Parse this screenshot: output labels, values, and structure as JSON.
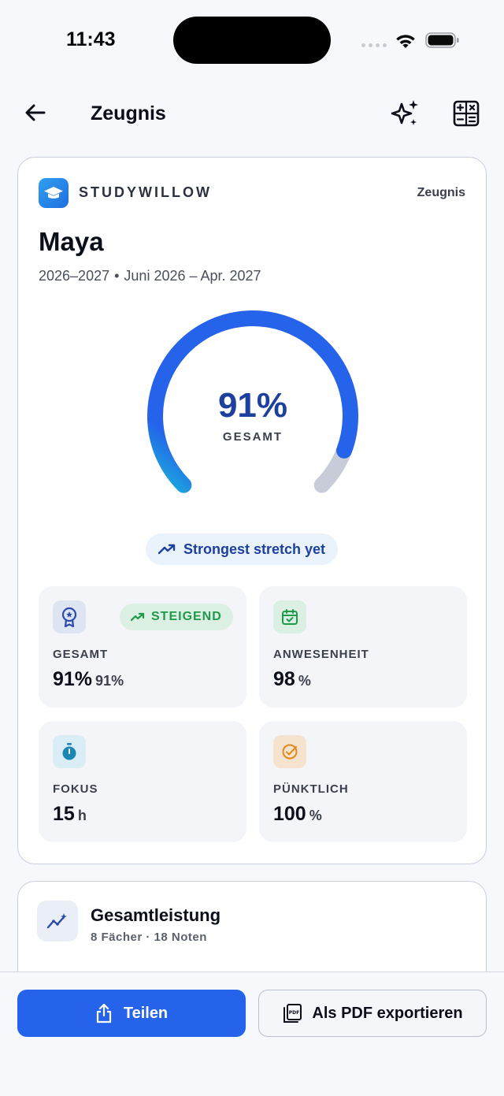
{
  "status_bar": {
    "time": "11:43"
  },
  "nav": {
    "title": "Zeugnis"
  },
  "report": {
    "brand": "STUDYWILLOW",
    "card_type": "Zeugnis",
    "student_name": "Maya",
    "school_year": "2026–2027",
    "date_range": "Juni 2026 – Apr. 2027",
    "overall_percent": "91%",
    "overall_fraction": 0.91,
    "overall_label": "GESAMT",
    "stretch_label": "Strongest stretch yet",
    "tiles": [
      {
        "label": "GESAMT",
        "value": "91%",
        "unit": "91%",
        "badge": "STEIGEND",
        "icon": "award-icon"
      },
      {
        "label": "ANWESENHEIT",
        "value": "98",
        "unit": "%",
        "icon": "calendar-check-icon"
      },
      {
        "label": "FOKUS",
        "value": "15",
        "unit": "h",
        "icon": "stopwatch-icon"
      },
      {
        "label": "PÜNKTLICH",
        "value": "100",
        "unit": "%",
        "icon": "check-circle-icon"
      }
    ]
  },
  "performance": {
    "title": "Gesamtleistung",
    "subtitle": "8 Fächer · 18 Noten"
  },
  "actions": {
    "share_label": "Teilen",
    "pdf_label": "Als PDF exportieren"
  },
  "colors": {
    "accent": "#2563eb",
    "gauge_start": "#1ab5d9",
    "gauge_end": "#2563eb",
    "gauge_track": "#c8ccd8",
    "success": "#1f9a4a"
  }
}
